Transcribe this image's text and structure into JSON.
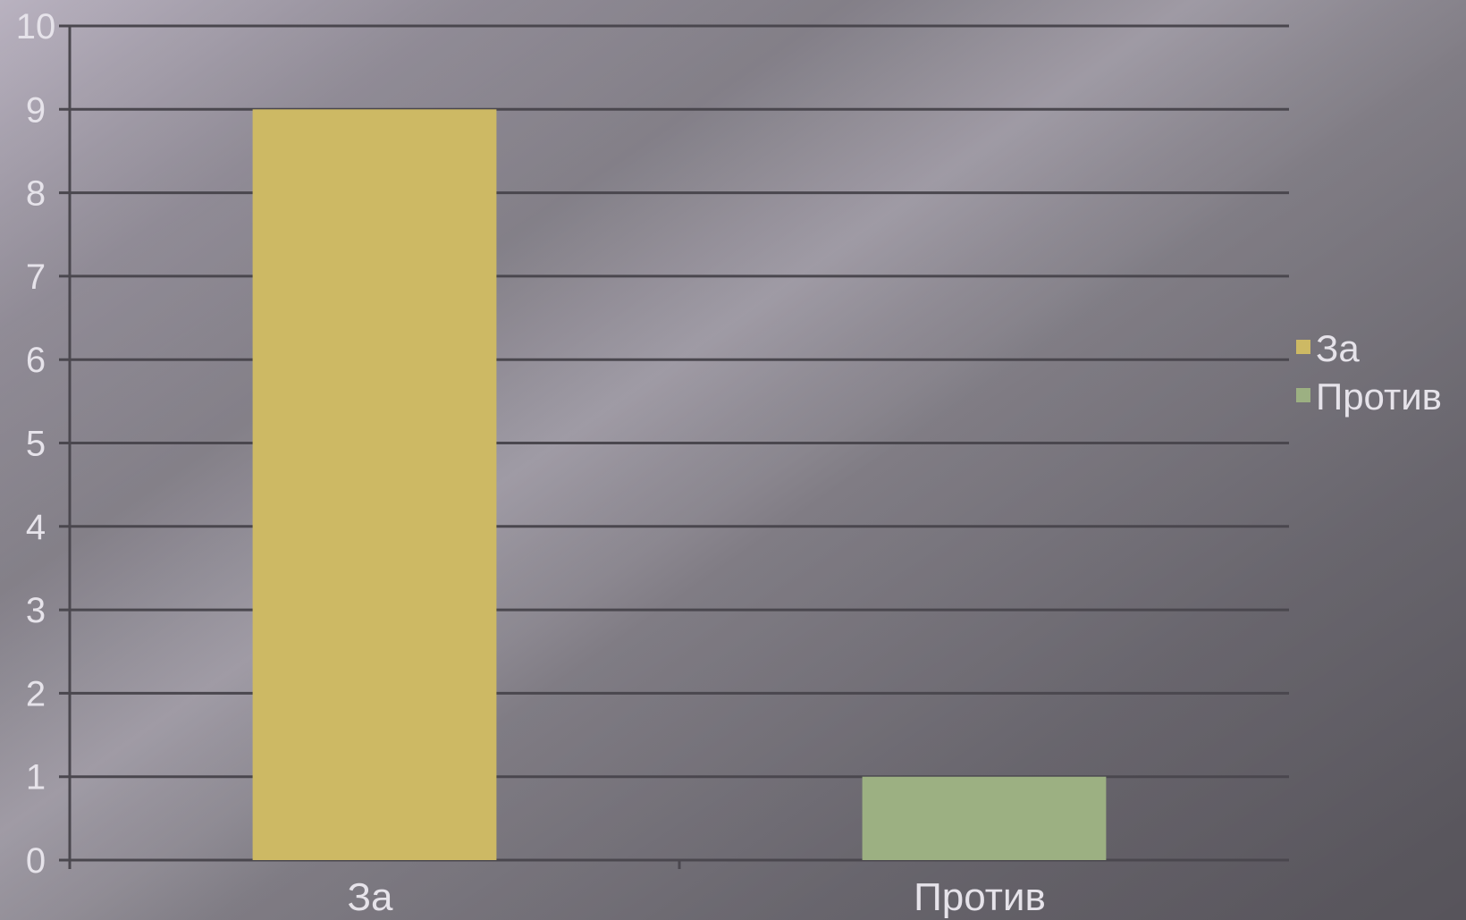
{
  "chart_data": {
    "type": "bar",
    "title": "",
    "xlabel": "",
    "ylabel": "",
    "categories": [
      "За",
      "Против"
    ],
    "series": [
      {
        "name": "За",
        "values": [
          9,
          null
        ],
        "color": "#cdb964"
      },
      {
        "name": "Против",
        "values": [
          null,
          1
        ],
        "color": "#9cb082"
      }
    ],
    "ylim": [
      0,
      10
    ],
    "yticks": [
      "0",
      "1",
      "2",
      "3",
      "4",
      "5",
      "6",
      "7",
      "8",
      "9",
      "10"
    ],
    "grid": true,
    "legend_position": "right",
    "colors": {
      "background_dark": "#58555c",
      "background_light": "#b4aebb",
      "gridline": "#4a474e",
      "text": "#e6e3ea"
    }
  }
}
